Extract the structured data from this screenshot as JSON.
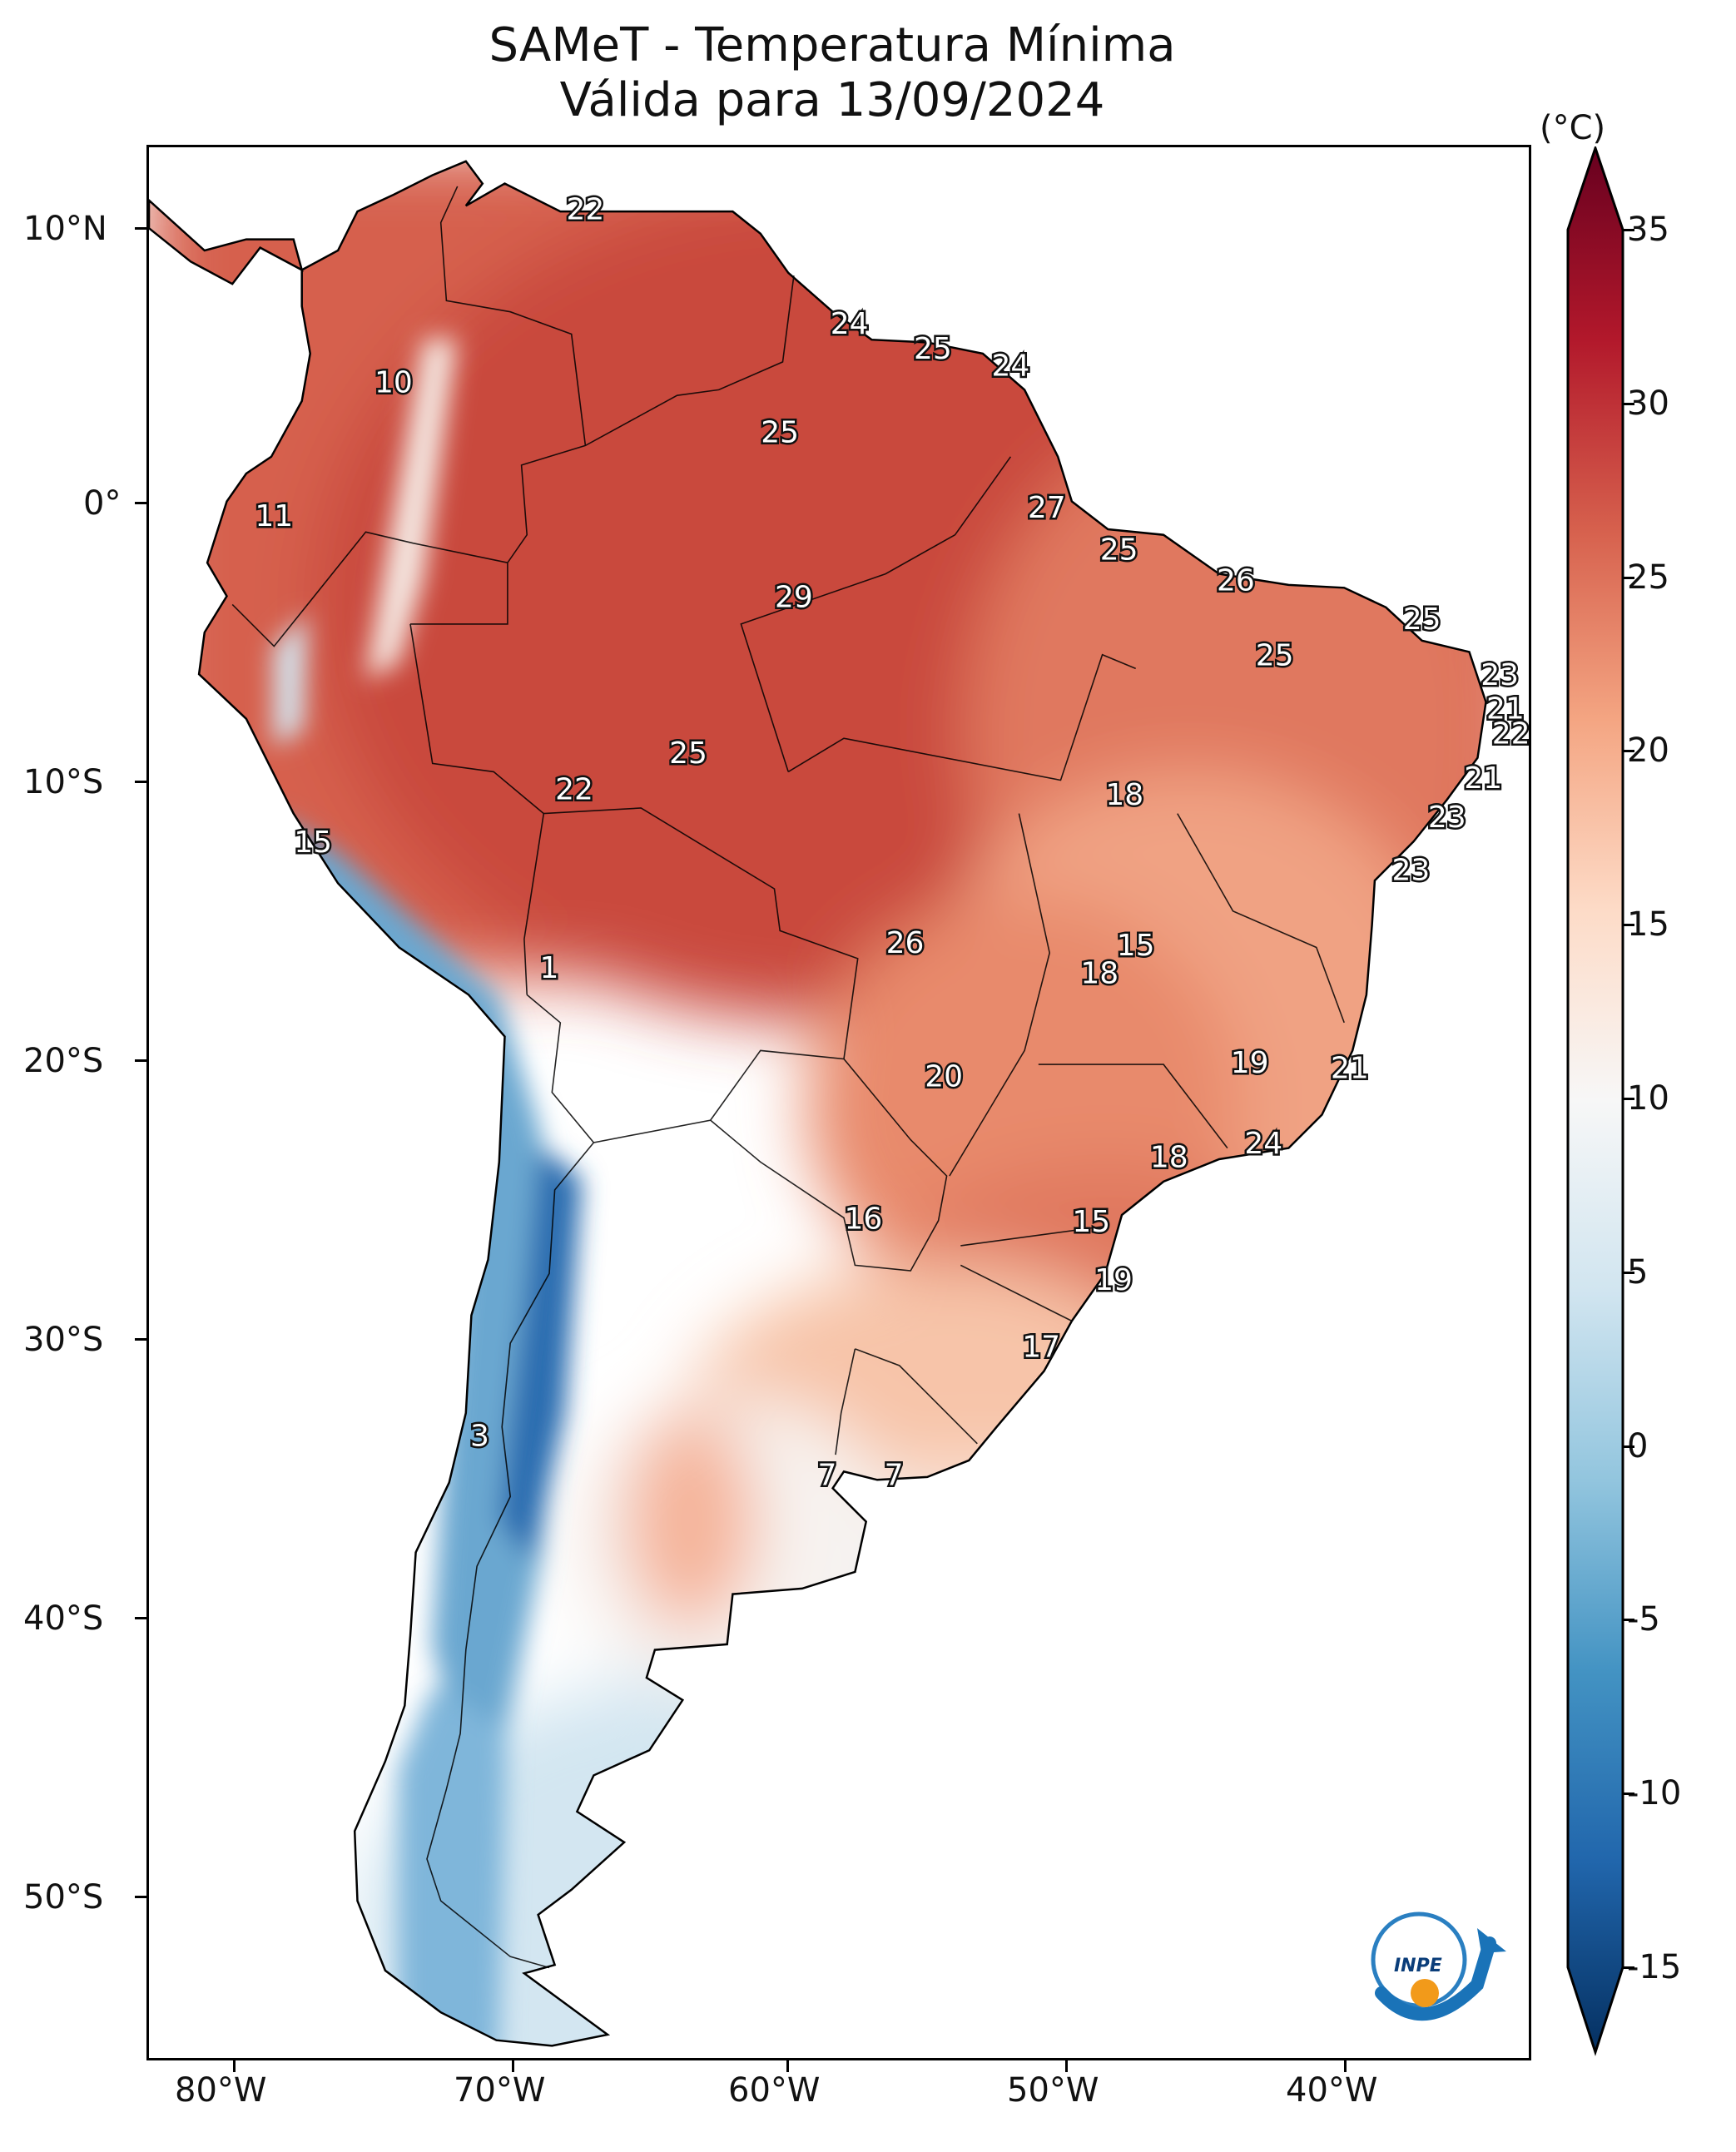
{
  "title": {
    "line1": "SAMeT - Temperatura Mínima",
    "line2": "Válida para 13/09/2024"
  },
  "colorbar": {
    "unit": "(°C)",
    "ticks": [
      "35",
      "30",
      "25",
      "20",
      "15",
      "10",
      "5",
      "0",
      "-5",
      "-10",
      "-15"
    ],
    "colors": [
      "#67001f",
      "#b2182b",
      "#d6604d",
      "#f4a582",
      "#fddbc7",
      "#f7f7f7",
      "#d1e5f0",
      "#92c5de",
      "#4393c3",
      "#2166ac",
      "#053061"
    ]
  },
  "axes": {
    "lat_labels": [
      "10°N",
      "0°",
      "10°S",
      "20°S",
      "30°S",
      "40°S",
      "50°S"
    ],
    "lon_labels": [
      "80°W",
      "70°W",
      "60°W",
      "50°W",
      "40°W"
    ]
  },
  "logo": {
    "text": "INPE"
  },
  "labels": [
    {
      "text": "22",
      "lon": -67.3,
      "lat": 10.7,
      "t": 22
    },
    {
      "text": "24",
      "lon": -57.8,
      "lat": 6.6,
      "t": 24
    },
    {
      "text": "25",
      "lon": -54.8,
      "lat": 5.7,
      "t": 25
    },
    {
      "text": "24",
      "lon": -52.0,
      "lat": 5.1,
      "t": 24
    },
    {
      "text": "10",
      "lon": -74.2,
      "lat": 4.5,
      "t": 10
    },
    {
      "text": "25",
      "lon": -60.3,
      "lat": 2.7,
      "t": 25
    },
    {
      "text": "27",
      "lon": -50.7,
      "lat": 0.0,
      "t": 27
    },
    {
      "text": "11",
      "lon": -78.5,
      "lat": -0.3,
      "t": 11
    },
    {
      "text": "25",
      "lon": -48.1,
      "lat": -1.5,
      "t": 25
    },
    {
      "text": "26",
      "lon": -43.9,
      "lat": -2.6,
      "t": 26
    },
    {
      "text": "29",
      "lon": -59.8,
      "lat": -3.2,
      "t": 29
    },
    {
      "text": "25",
      "lon": -37.2,
      "lat": -4.0,
      "t": 25
    },
    {
      "text": "25",
      "lon": -42.5,
      "lat": -5.3,
      "t": 25
    },
    {
      "text": "23",
      "lon": -34.4,
      "lat": -6.0,
      "t": 23
    },
    {
      "text": "21",
      "lon": -34.2,
      "lat": -7.2,
      "t": 21
    },
    {
      "text": "22",
      "lon": -34.0,
      "lat": -8.1,
      "t": 22
    },
    {
      "text": "25",
      "lon": -63.6,
      "lat": -8.8,
      "t": 25
    },
    {
      "text": "21",
      "lon": -35.0,
      "lat": -9.7,
      "t": 21
    },
    {
      "text": "22",
      "lon": -67.7,
      "lat": -10.1,
      "t": 22
    },
    {
      "text": "18",
      "lon": -47.9,
      "lat": -10.3,
      "t": 18
    },
    {
      "text": "23",
      "lon": -36.3,
      "lat": -11.1,
      "t": 23
    },
    {
      "text": "15",
      "lon": -77.1,
      "lat": -12.0,
      "t": 15
    },
    {
      "text": "23",
      "lon": -37.6,
      "lat": -13.0,
      "t": 23
    },
    {
      "text": "26",
      "lon": -55.8,
      "lat": -15.6,
      "t": 26
    },
    {
      "text": "15",
      "lon": -47.5,
      "lat": -15.7,
      "t": 15
    },
    {
      "text": "1",
      "lon": -68.6,
      "lat": -16.5,
      "t": 1
    },
    {
      "text": "18",
      "lon": -48.8,
      "lat": -16.7,
      "t": 18
    },
    {
      "text": "19",
      "lon": -43.4,
      "lat": -19.9,
      "t": 19
    },
    {
      "text": "21",
      "lon": -39.8,
      "lat": -20.1,
      "t": 21
    },
    {
      "text": "20",
      "lon": -54.4,
      "lat": -20.4,
      "t": 20
    },
    {
      "text": "24",
      "lon": -42.9,
      "lat": -22.8,
      "t": 24
    },
    {
      "text": "18",
      "lon": -46.3,
      "lat": -23.3,
      "t": 18
    },
    {
      "text": "16",
      "lon": -57.3,
      "lat": -25.5,
      "t": 16
    },
    {
      "text": "15",
      "lon": -49.1,
      "lat": -25.6,
      "t": 15
    },
    {
      "text": "19",
      "lon": -48.3,
      "lat": -27.7,
      "t": 19
    },
    {
      "text": "17",
      "lon": -50.9,
      "lat": -30.1,
      "t": 17
    },
    {
      "text": "3",
      "lon": -71.1,
      "lat": -33.3,
      "t": 3
    },
    {
      "text": "7",
      "lon": -58.6,
      "lat": -34.7,
      "t": 7
    },
    {
      "text": "7",
      "lon": -56.2,
      "lat": -34.7,
      "t": 7
    }
  ]
}
